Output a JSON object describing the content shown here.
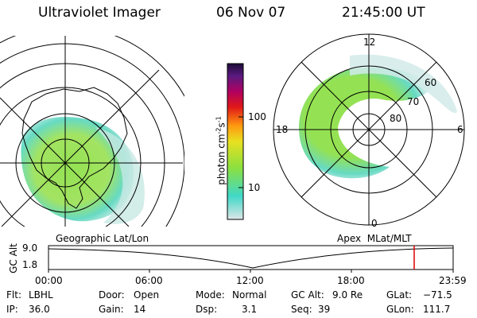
{
  "header": {
    "instrument": "Ultraviolet Imager",
    "date": "06 Nov 07",
    "time": "21:45:00 UT"
  },
  "colorbar": {
    "label_parts": [
      "photon cm",
      "-2",
      "s",
      "-1"
    ],
    "ticks": [
      "100",
      "10"
    ],
    "colors": [
      "#dde6e6",
      "#40d8c8",
      "#8ae040",
      "#e8e020",
      "#ff9a10",
      "#e01818",
      "#b00060",
      "#5a1a80",
      "#1c0c38"
    ]
  },
  "polar_labels": {
    "mlt": [
      "12",
      "18",
      "6",
      "0"
    ],
    "mlat": [
      "60",
      "70",
      "80"
    ]
  },
  "panel_titles": {
    "left": "Geographic Lat/Lon",
    "right": "Apex  MLat/MLT"
  },
  "timeline": {
    "alt_label": "GC Alt",
    "y_ticks": [
      "9.0",
      "1.8"
    ],
    "x_ticks": [
      "00:00",
      "06:00",
      "12:00",
      "18:00",
      "23:59"
    ],
    "marker_color": "#dd0000"
  },
  "info": {
    "flt_label": "Flt:",
    "flt_value": "LBHL",
    "ip_label": "IP:",
    "ip_value": "36.0",
    "door_label": "Door:",
    "door_value": "Open",
    "gain_label": "Gain:",
    "gain_value": "14",
    "mode_label": "Mode:",
    "mode_value": "Normal",
    "dsp_label": "Dsp:",
    "dsp_value": "3.1",
    "gcalt_label": "GC Alt:",
    "gcalt_value": "9.0 Re",
    "seq_label": "Seq:",
    "seq_value": "39",
    "glat_label": "GLat:",
    "glat_value": "−71.5",
    "glon_label": "GLon:",
    "glon_value": "111.7"
  },
  "colors": {
    "aurora_dim": "#cfe6e4",
    "aurora_cyan": "#4fd8c8",
    "aurora_green": "#8ee04a",
    "line": "#000000"
  }
}
